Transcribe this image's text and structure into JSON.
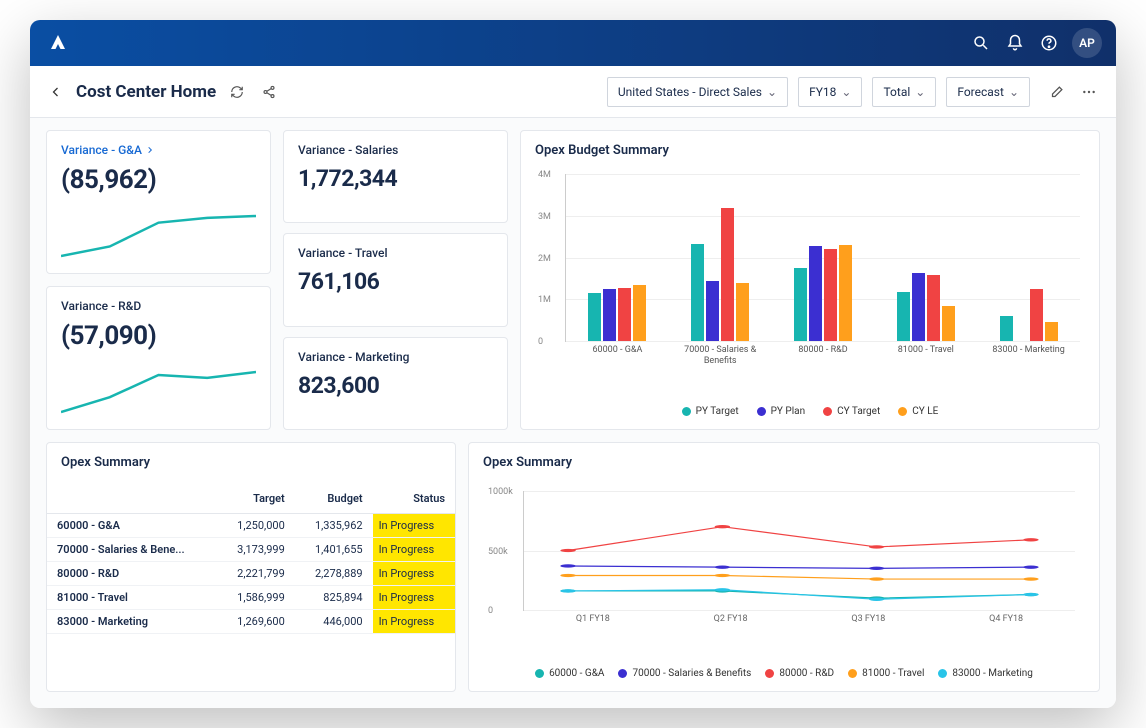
{
  "topnav": {
    "avatar_initials": "AP"
  },
  "header": {
    "title": "Cost Center Home",
    "filters": {
      "region": "United States - Direct Sales",
      "year": "FY18",
      "total": "Total",
      "scenario": "Forecast"
    }
  },
  "kpi": {
    "ga": {
      "title": "Variance - G&A",
      "value": "(85,962)",
      "spark": [
        20,
        30,
        55,
        60,
        62
      ],
      "spark_color": "#17b5b0"
    },
    "rd": {
      "title": "Variance - R&D",
      "value": "(57,090)",
      "spark": [
        25,
        35,
        50,
        48,
        52
      ],
      "spark_color": "#17b5b0"
    },
    "salaries": {
      "title": "Variance - Salaries",
      "value": "1,772,344"
    },
    "travel": {
      "title": "Variance - Travel",
      "value": "761,106"
    },
    "marketing": {
      "title": "Variance - Marketing",
      "value": "823,600"
    }
  },
  "barChart": {
    "title": "Opex Budget Summary",
    "ymax": 4000000,
    "yticks": [
      {
        "v": 0,
        "label": "0"
      },
      {
        "v": 1000000,
        "label": "1M"
      },
      {
        "v": 2000000,
        "label": "2M"
      },
      {
        "v": 3000000,
        "label": "3M"
      },
      {
        "v": 4000000,
        "label": "4M"
      }
    ],
    "series": [
      {
        "name": "PY Target",
        "color": "#17b5b0"
      },
      {
        "name": "PY Plan",
        "color": "#3b2fd1"
      },
      {
        "name": "CY Target",
        "color": "#f04343"
      },
      {
        "name": "CY LE",
        "color": "#ff9f1c"
      }
    ],
    "groups": [
      {
        "label": "60000 - G&A",
        "values": [
          1150000,
          1250000,
          1280000,
          1340000
        ]
      },
      {
        "label": "70000 - Salaries & Benefits",
        "values": [
          2320000,
          1430000,
          3180000,
          1400000
        ]
      },
      {
        "label": "80000 - R&D",
        "values": [
          1760000,
          2270000,
          2200000,
          2290000
        ]
      },
      {
        "label": "81000 - Travel",
        "values": [
          1180000,
          1620000,
          1590000,
          850000
        ]
      },
      {
        "label": "83000 - Marketing",
        "values": [
          590000,
          0,
          1250000,
          450000
        ]
      }
    ]
  },
  "opexTable": {
    "title": "Opex Summary",
    "columns": [
      "",
      "Target",
      "Budget",
      "Status"
    ],
    "rows": [
      {
        "name": "60000 - G&A",
        "target": "1,250,000",
        "budget": "1,335,962",
        "status": "In Progress"
      },
      {
        "name": "70000 - Salaries & Bene...",
        "target": "3,173,999",
        "budget": "1,401,655",
        "status": "In Progress"
      },
      {
        "name": "80000 - R&D",
        "target": "2,221,799",
        "budget": "2,278,889",
        "status": "In Progress"
      },
      {
        "name": "81000 - Travel",
        "target": "1,586,999",
        "budget": "825,894",
        "status": "In Progress"
      },
      {
        "name": "83000 - Marketing",
        "target": "1,269,600",
        "budget": "446,000",
        "status": "In Progress"
      }
    ]
  },
  "lineChart": {
    "title": "Opex Summary",
    "ymax": 1000000,
    "yticks": [
      {
        "v": 0,
        "label": "0"
      },
      {
        "v": 500000,
        "label": "500k"
      },
      {
        "v": 1000000,
        "label": "1000k"
      }
    ],
    "x": [
      "Q1 FY18",
      "Q2 FY18",
      "Q3 FY18",
      "Q4 FY18"
    ],
    "series": [
      {
        "name": "60000 - G&A",
        "color": "#17b5b0",
        "values": [
          160000,
          160000,
          100000,
          130000
        ]
      },
      {
        "name": "70000 - Salaries & Benefits",
        "color": "#3b2fd1",
        "values": [
          370000,
          360000,
          350000,
          360000
        ]
      },
      {
        "name": "80000 - R&D",
        "color": "#f04343",
        "values": [
          500000,
          700000,
          530000,
          590000
        ]
      },
      {
        "name": "81000 - Travel",
        "color": "#ff9f1c",
        "values": [
          290000,
          290000,
          260000,
          260000
        ]
      },
      {
        "name": "83000 - Marketing",
        "color": "#29c4e8",
        "values": [
          160000,
          170000,
          90000,
          130000
        ]
      }
    ]
  },
  "colors": {
    "status_highlight": "#ffe600"
  }
}
